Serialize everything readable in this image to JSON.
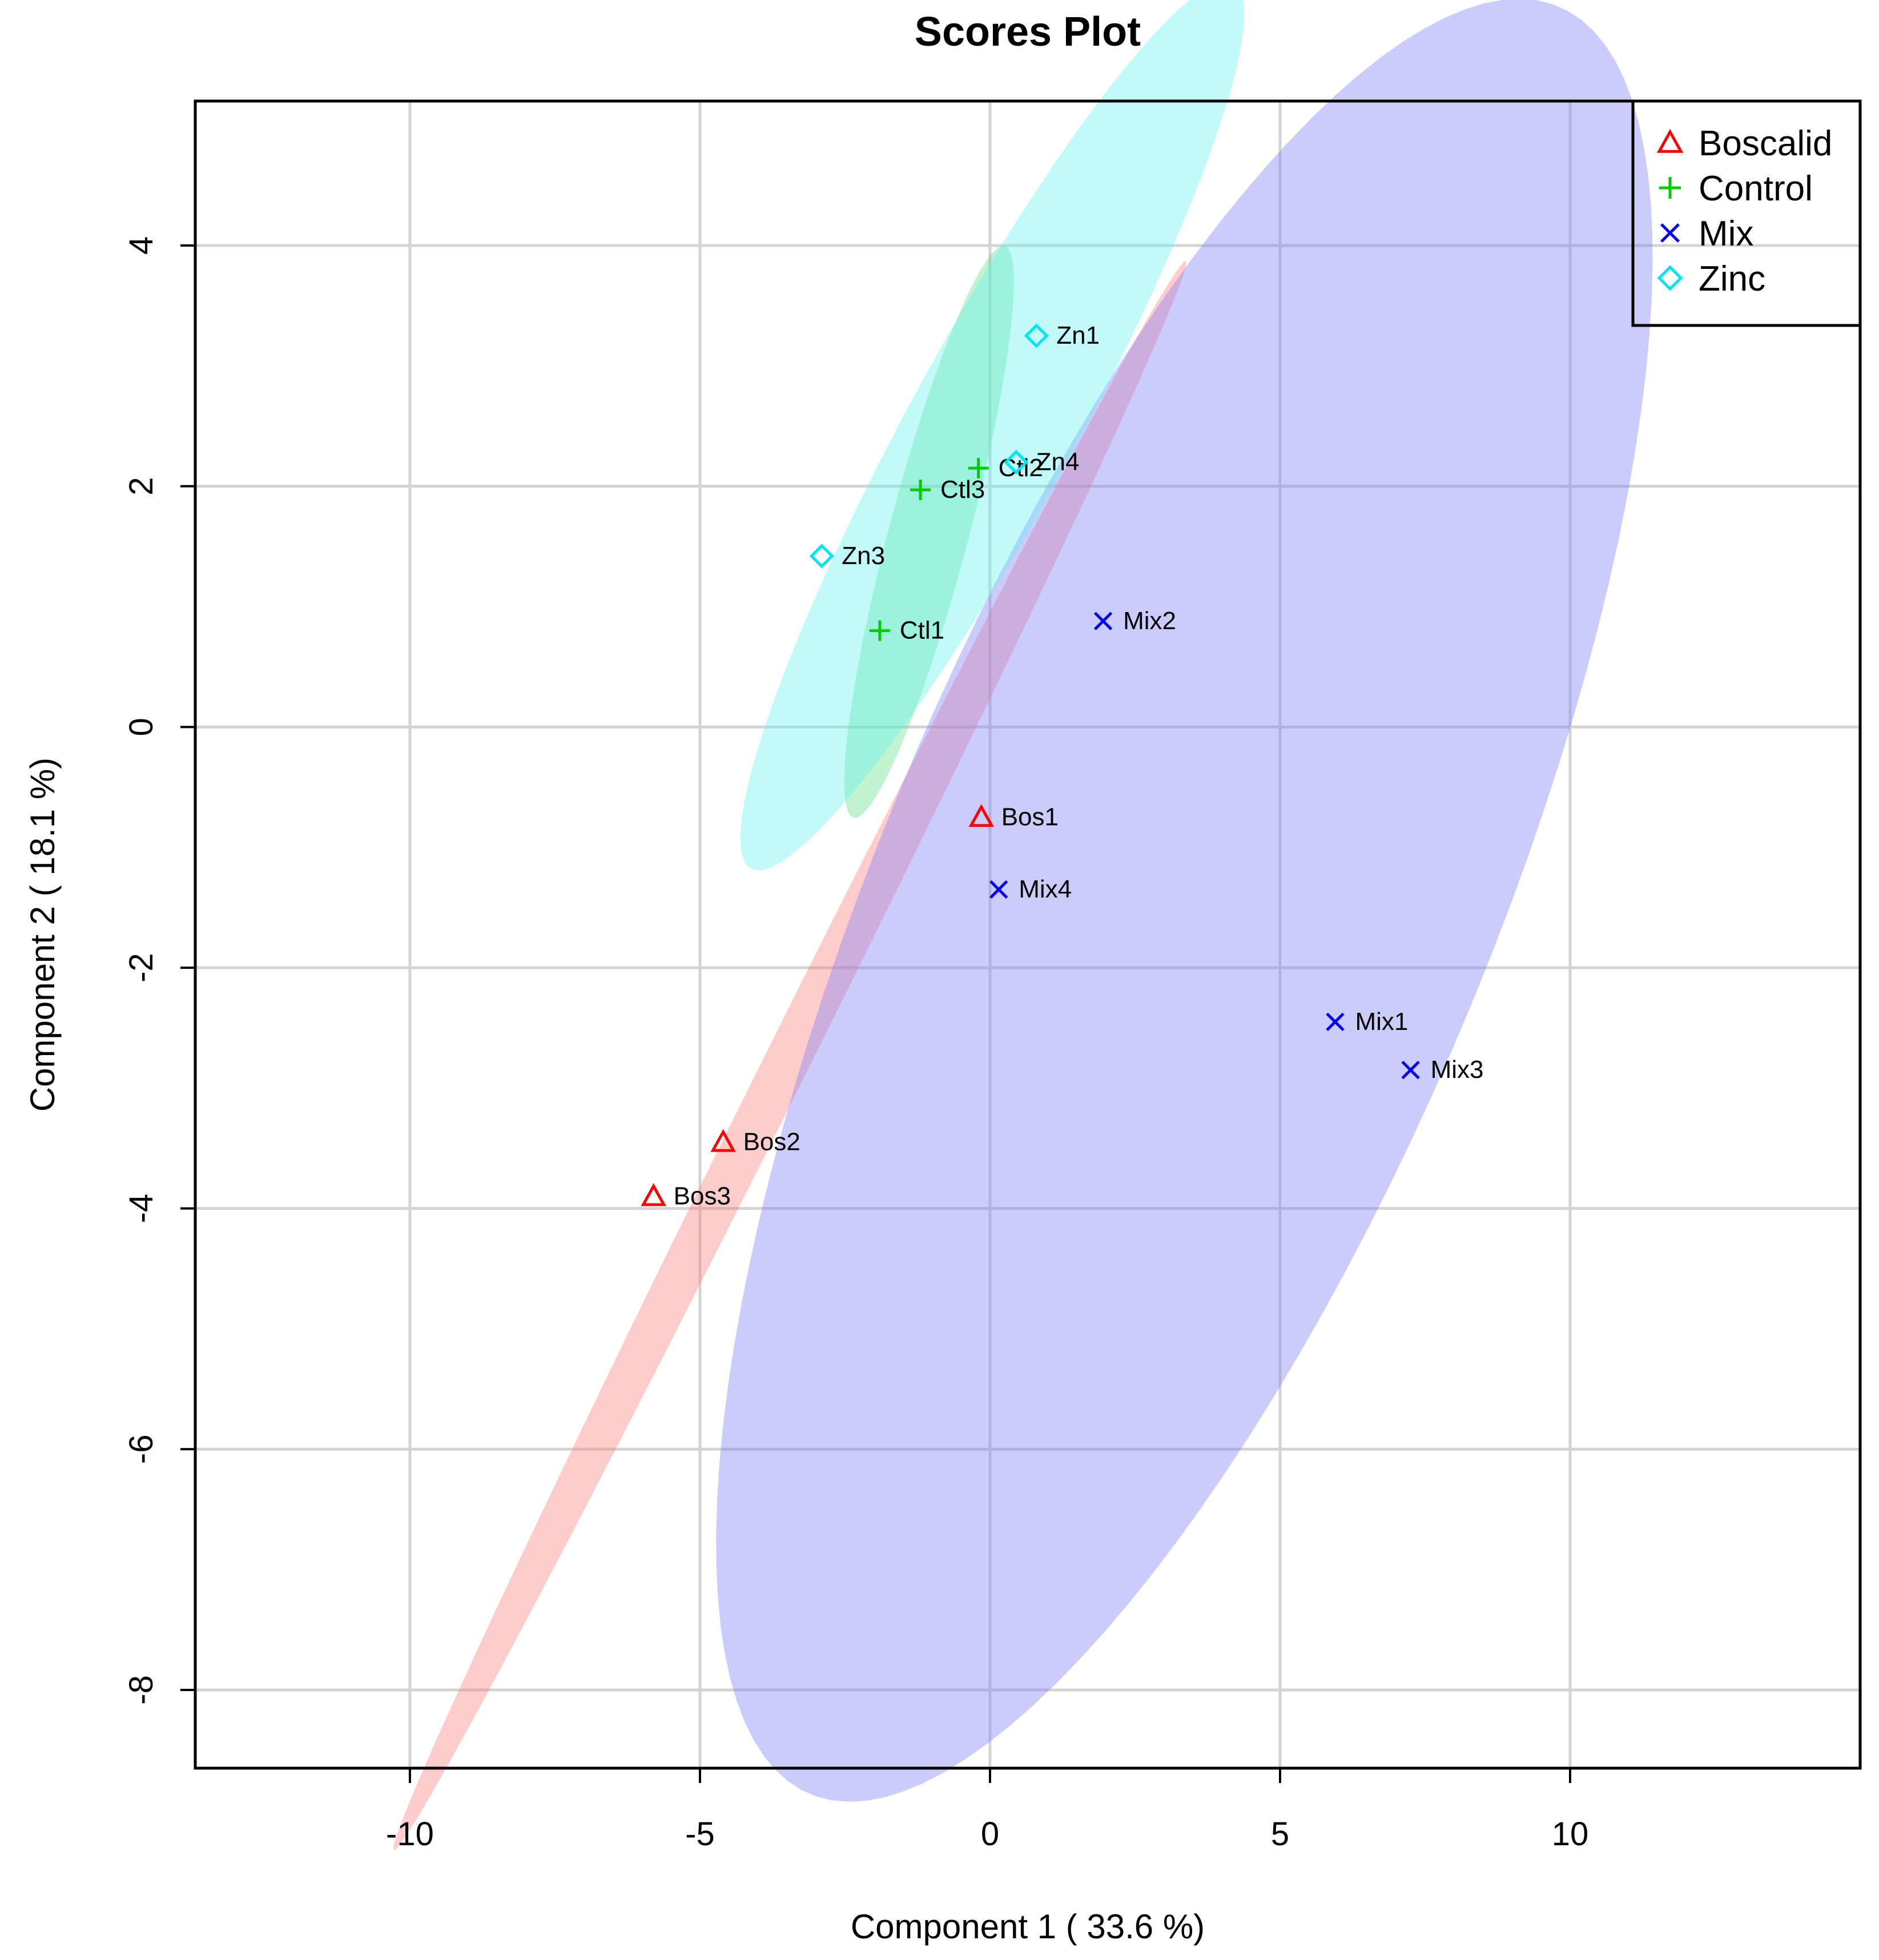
{
  "chart_data": {
    "type": "scatter",
    "title": "Scores Plot",
    "xlabel": "Component 1 ( 33.6 %)",
    "ylabel": "Component 2 ( 18.1 %)",
    "xlim": [
      -13.7,
      15
    ],
    "ylim": [
      -8.65,
      5.2
    ],
    "x_ticks": [
      -10,
      -5,
      0,
      5,
      10
    ],
    "y_ticks": [
      -8,
      -6,
      -4,
      -2,
      0,
      2,
      4
    ],
    "x_tick_labels": [
      "-10",
      "-5",
      "0",
      "5",
      "10"
    ],
    "y_tick_labels": [
      "-8",
      "-6",
      "-4",
      "-2",
      "0",
      "2",
      "4"
    ],
    "grid": true,
    "legend_position": "top-right",
    "series": [
      {
        "name": "Boscalid",
        "color": "#ff0000",
        "fill": "#ff8080",
        "marker": "triangle",
        "points": [
          {
            "label": "Bos1",
            "x": -0.15,
            "y": -0.75
          },
          {
            "label": "Bos2",
            "x": -4.6,
            "y": -3.45
          },
          {
            "label": "Bos3",
            "x": -5.8,
            "y": -3.9
          }
        ],
        "ellipse": {
          "cx": -3.45,
          "cy": -2.73,
          "semi_major": 9.5,
          "semi_minor": 0.3,
          "angle_deg": 44
        }
      },
      {
        "name": "Control",
        "color": "#00cc00",
        "fill": "#66e08c",
        "marker": "plus",
        "points": [
          {
            "label": "Ctl1",
            "x": -1.9,
            "y": 0.8
          },
          {
            "label": "Ctl3",
            "x": -1.2,
            "y": 1.97
          },
          {
            "label": "Ctl2",
            "x": -0.2,
            "y": 2.15
          }
        ],
        "ellipse": {
          "cx": -1.05,
          "cy": 1.62,
          "semi_major": 2.72,
          "semi_minor": 0.62,
          "angle_deg": 60
        }
      },
      {
        "name": "Mix",
        "color": "#0000ff",
        "fill": "#8080f8",
        "marker": "cross",
        "points": [
          {
            "label": "Mix2",
            "x": 1.95,
            "y": 0.88
          },
          {
            "label": "Mix4",
            "x": 0.15,
            "y": -1.35
          },
          {
            "label": "Mix1",
            "x": 5.95,
            "y": -2.45
          },
          {
            "label": "Mix3",
            "x": 7.25,
            "y": -2.85
          }
        ],
        "ellipse": {
          "cx": 3.35,
          "cy": -1.44,
          "semi_major": 10.2,
          "semi_minor": 4.15,
          "angle_deg": 42
        }
      },
      {
        "name": "Zinc",
        "color": "#00e5ee",
        "fill": "#66f0f0",
        "marker": "diamond",
        "points": [
          {
            "label": "Zn1",
            "x": 0.8,
            "y": 3.25
          },
          {
            "label": "Zn4",
            "x": 0.45,
            "y": 2.2
          },
          {
            "label": "Zn3",
            "x": -2.9,
            "y": 1.42
          }
        ],
        "ellipse": {
          "cx": 0.04,
          "cy": 2.5,
          "semi_major": 5.6,
          "semi_minor": 1.07,
          "angle_deg": 40
        }
      }
    ]
  }
}
